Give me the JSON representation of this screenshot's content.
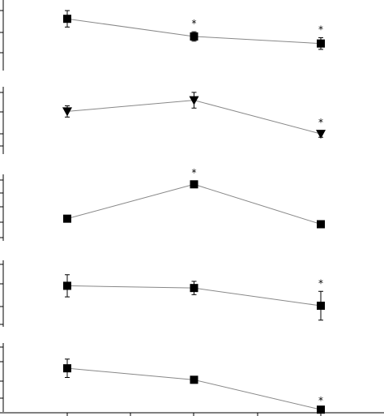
{
  "chart_data": [
    {
      "type": "line",
      "x": [
        1,
        2,
        3
      ],
      "series": [
        {
          "marker": "square",
          "values": [
            54,
            39,
            33
          ],
          "errors": [
            7,
            4,
            5
          ]
        }
      ],
      "significance": [
        "",
        "*",
        "*"
      ],
      "ylim": [
        10,
        70
      ]
    },
    {
      "type": "line",
      "x": [
        1,
        2,
        3
      ],
      "series": [
        {
          "marker": "triangle-down",
          "values": [
            48,
            58,
            28
          ],
          "errors": [
            5,
            7,
            3
          ]
        }
      ],
      "significance": [
        "",
        "",
        "*"
      ],
      "ylim": [
        10,
        70
      ]
    },
    {
      "type": "line",
      "x": [
        1,
        2,
        3
      ],
      "series": [
        {
          "marker": "square",
          "values": [
            30,
            61,
            25
          ],
          "errors": [
            1,
            3,
            2
          ]
        }
      ],
      "significance": [
        "",
        "*",
        ""
      ],
      "ylim": [
        10,
        70
      ]
    },
    {
      "type": "line",
      "x": [
        1,
        2,
        3
      ],
      "series": [
        {
          "marker": "square",
          "values": [
            47,
            45,
            29
          ],
          "errors": [
            10,
            6,
            13
          ]
        }
      ],
      "significance": [
        "",
        "",
        "*"
      ],
      "ylim": [
        10,
        70
      ]
    },
    {
      "type": "line",
      "x": [
        1,
        2,
        3
      ],
      "series": [
        {
          "marker": "square",
          "values": [
            48,
            38,
            12
          ],
          "errors": [
            8,
            3,
            1
          ]
        }
      ],
      "significance": [
        "",
        "",
        "*"
      ],
      "ylim": [
        10,
        70
      ]
    }
  ],
  "colors": {
    "line": "#888888",
    "marker": "#000000",
    "axis": "#000000"
  }
}
